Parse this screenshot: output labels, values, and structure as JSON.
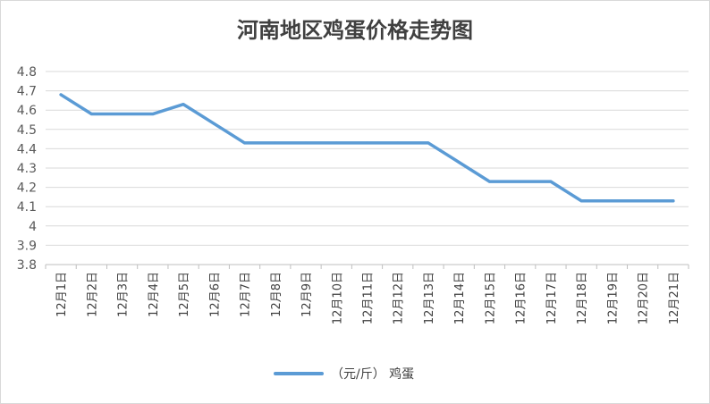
{
  "chart_data": {
    "type": "line",
    "title": "河南地区鸡蛋价格走势图",
    "xlabel": "",
    "ylabel": "",
    "categories": [
      "12月1日",
      "12月2日",
      "12月3日",
      "12月4日",
      "12月5日",
      "12月6日",
      "12月7日",
      "12月8日",
      "12月9日",
      "12月10日",
      "12月11日",
      "12月12日",
      "12月13日",
      "12月14日",
      "12月15日",
      "12月16日",
      "12月17日",
      "12月18日",
      "12月19日",
      "12月20日",
      "12月21日"
    ],
    "y_ticks": [
      "3.8",
      "3.9",
      "4",
      "4.1",
      "4.2",
      "4.3",
      "4.4",
      "4.5",
      "4.6",
      "4.7",
      "4.8"
    ],
    "ylim": [
      3.8,
      4.8
    ],
    "grid": "horizontal",
    "legend": "bottom",
    "series": [
      {
        "name": "（元/斤）  鸡蛋",
        "color": "#5b9bd5",
        "values": [
          4.68,
          4.58,
          4.58,
          4.58,
          4.63,
          4.53,
          4.43,
          4.43,
          4.43,
          4.43,
          4.43,
          4.43,
          4.43,
          4.33,
          4.23,
          4.23,
          4.23,
          4.13,
          4.13,
          4.13,
          4.13
        ]
      }
    ]
  }
}
